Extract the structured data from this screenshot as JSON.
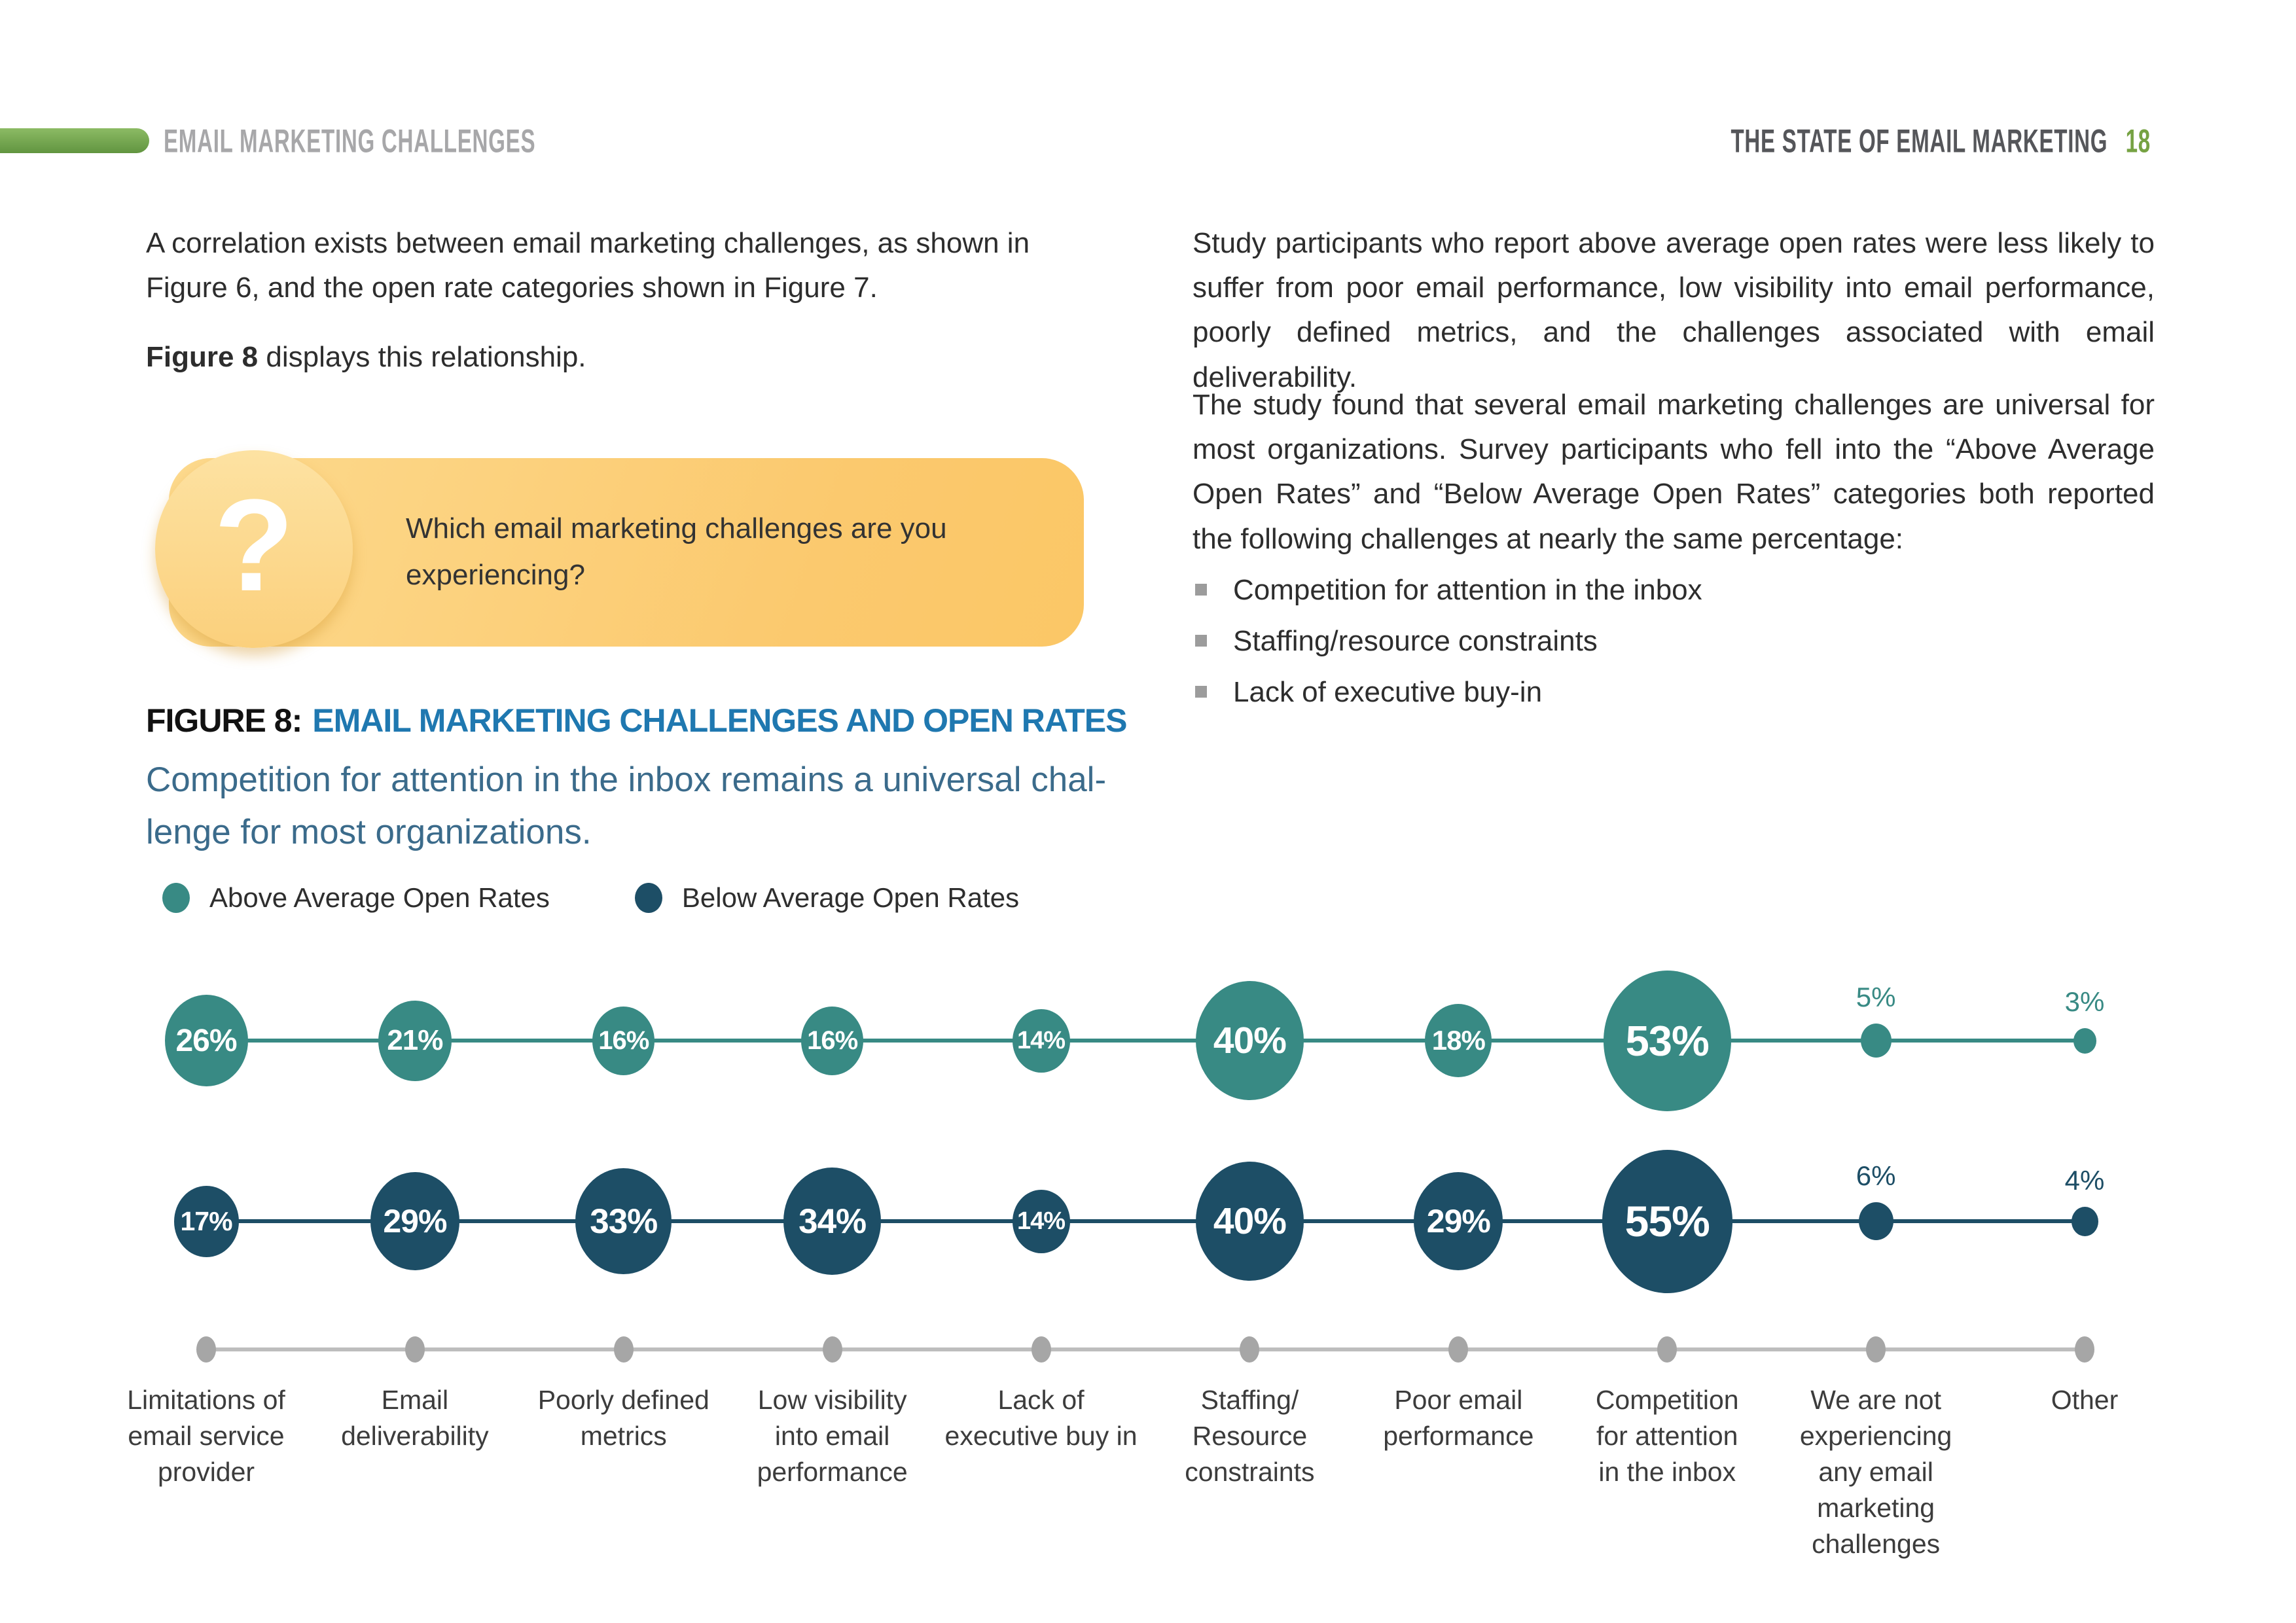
{
  "header": {
    "section_label": "EMAIL MARKETING CHALLENGES",
    "report_title": "THE STATE OF EMAIL MARKETING",
    "page_number": "18"
  },
  "left_column": {
    "para1": "A correlation exists between email marketing challenges, as shown in Figure 6, and the open rate categories shown in Figure 7.",
    "para2_lead": "Figure 8",
    "para2_rest": " displays this relationship.",
    "callout": {
      "icon_glyph": "?",
      "question": "Which email marketing challenges are you experiencing?"
    },
    "figure_label": "FIGURE 8:",
    "figure_title": "EMAIL MARKETING CHALLENGES AND OPEN RATES",
    "figure_subtitle": "Competition for attention in the inbox remains a universal chal-\nlenge for most organizations."
  },
  "right_column": {
    "para1": "Study participants who report above average open rates were less likely to suffer from poor email performance, low visibility into email performance, poorly defined metrics, and the challenges associated with email deliverability.",
    "para2": "The study found that several email marketing challenges are universal for most organizations. Survey participants who fell into the “Above Average Open Rates” and “Below Average Open Rates” categories both reported the following challenges at nearly the same percentage:",
    "bullets": [
      "Competition for attention in the inbox",
      "Staffing/resource constraints",
      "Lack of executive buy-in"
    ]
  },
  "legend": [
    {
      "label": "Above Average Open Rates",
      "color": "#388a84"
    },
    {
      "label": "Below Average Open Rates",
      "color": "#1d4e66"
    }
  ],
  "chart_data": {
    "type": "bubble",
    "value_suffix": "%",
    "categories": [
      "Limitations of\nemail service\nprovider",
      "Email\ndeliverability",
      "Poorly defined\nmetrics",
      "Low visibility\ninto email\nperformance",
      "Lack of\nexecutive buy in",
      "Staffing/\nResource\nconstraints",
      "Poor email\nperformance",
      "Competition\nfor attention\nin the inbox",
      "We are not\nexperiencing\nany email\nmarketing\nchallenges",
      "Other"
    ],
    "series": [
      {
        "name": "Above Average Open Rates",
        "color": "#388a84",
        "values": [
          26,
          21,
          16,
          16,
          14,
          40,
          18,
          53,
          5,
          3
        ]
      },
      {
        "name": "Below Average Open Rates",
        "color": "#1d4e66",
        "values": [
          17,
          29,
          33,
          34,
          14,
          40,
          29,
          55,
          6,
          4
        ]
      }
    ],
    "layout": {
      "rows": "two horizontal bubble rows above a gray category axis",
      "legend_position": "top-left above chart"
    }
  },
  "colors": {
    "teal": "#388a84",
    "navy": "#1d4e66",
    "header_green": "#76a243",
    "figure_title_blue": "#1f78b0",
    "subtitle_blue": "#3b6b8b",
    "axis_gray": "#a6a6a6",
    "callout_yellow_start": "#fdda8e",
    "callout_yellow_end": "#fbc766"
  }
}
